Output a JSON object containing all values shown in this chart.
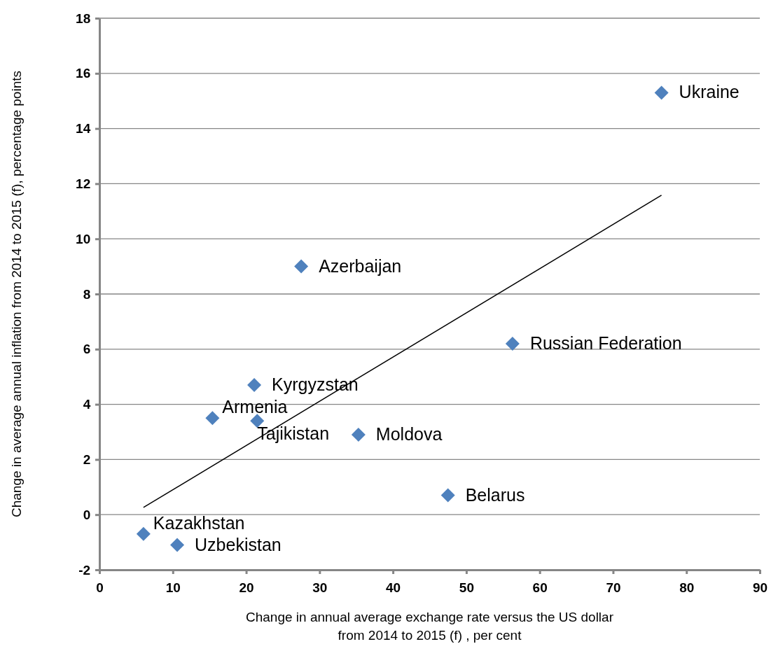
{
  "chart_data": {
    "type": "scatter",
    "xlabel": "Change in annual average exchange rate versus the US dollar from 2014 to 2015 (f) , per cent",
    "ylabel": "Change in average annual inflation from 2014 to 2015 (f), percentage points",
    "xlim": [
      0,
      90
    ],
    "xticks": [
      0,
      10,
      20,
      30,
      40,
      50,
      60,
      70,
      80,
      90
    ],
    "ylim": [
      -2,
      18
    ],
    "yticks": [
      -2,
      0,
      2,
      4,
      6,
      8,
      10,
      12,
      14,
      16,
      18
    ],
    "grid": "y",
    "marker": "diamond",
    "series": [
      {
        "type": "scatter",
        "color": "#4f81bd",
        "x": [
          76.6,
          27.5,
          56.3,
          21.1,
          15.4,
          21.5,
          35.3,
          47.5,
          6.0,
          10.6
        ],
        "values": [
          15.3,
          9.0,
          6.2,
          4.7,
          3.5,
          3.4,
          2.9,
          0.7,
          -0.7,
          -1.1
        ]
      },
      {
        "type": "line",
        "color": "#000000",
        "marker": "none",
        "line_style": "solid",
        "x": [
          6.0,
          76.6
        ],
        "values": [
          0.26,
          11.58
        ]
      }
    ],
    "annotations": [
      {
        "text": "Ukraine",
        "x": 76.6,
        "y": 15.3
      },
      {
        "text": "Azerbaijan",
        "x": 27.5,
        "y": 9.0
      },
      {
        "text": "Russian Federation",
        "x": 56.3,
        "y": 6.2
      },
      {
        "text": "Kyrgyzstan",
        "x": 21.1,
        "y": 4.7
      },
      {
        "text": "Armenia",
        "x": 15.4,
        "y": 3.5
      },
      {
        "text": "Tajikistan",
        "x": 21.5,
        "y": 3.4
      },
      {
        "text": "Moldova",
        "x": 35.3,
        "y": 2.9
      },
      {
        "text": "Belarus",
        "x": 47.5,
        "y": 0.7
      },
      {
        "text": "Kazakhstan",
        "x": 6.0,
        "y": -0.7
      },
      {
        "text": "Uzbekistan",
        "x": 10.6,
        "y": -1.1
      }
    ]
  }
}
